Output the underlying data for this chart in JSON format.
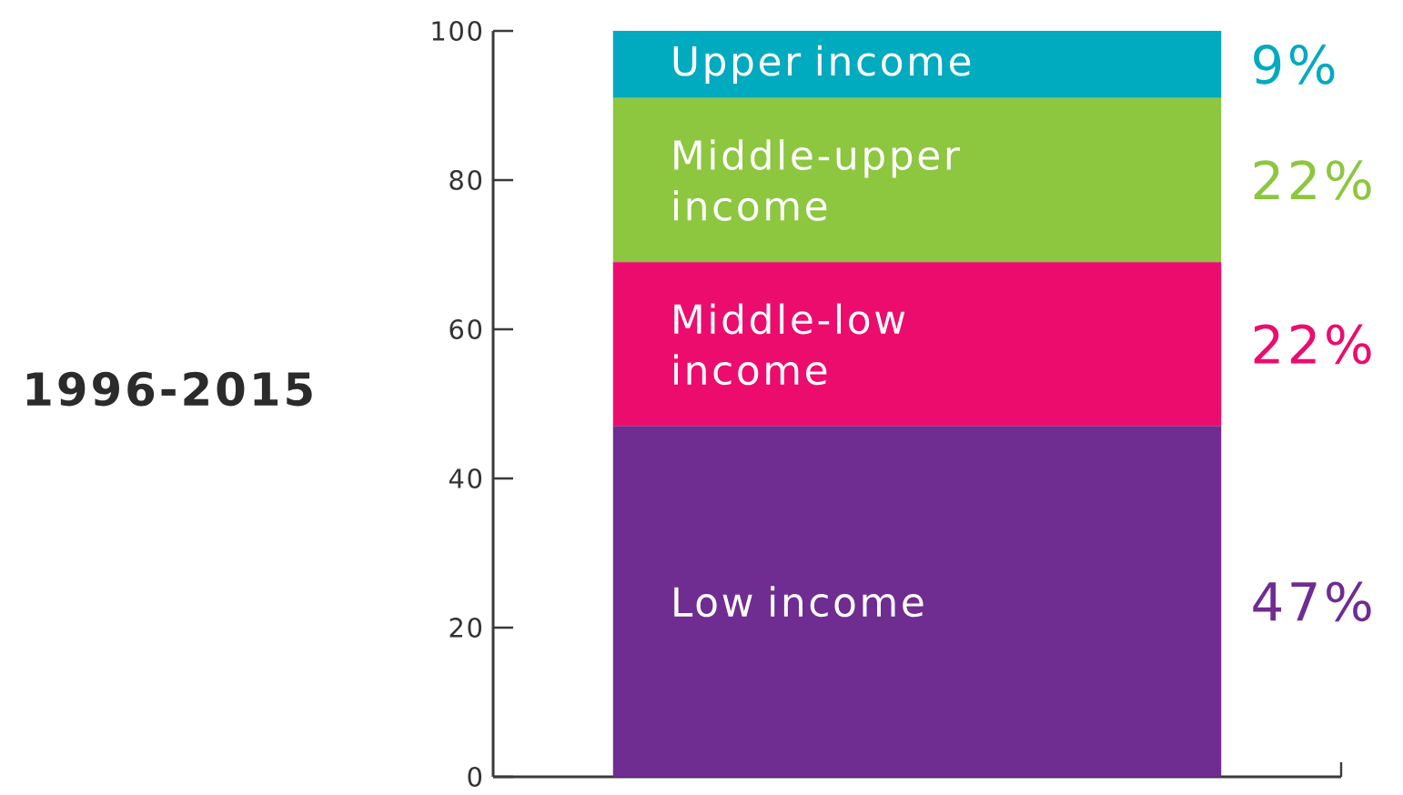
{
  "chart_data": {
    "type": "bar",
    "stacked": true,
    "title": "1996-2015",
    "categories": [
      null
    ],
    "series": [
      {
        "name": "Low income",
        "color": "#6f2c91",
        "values": [
          47
        ]
      },
      {
        "name": "Middle-low income",
        "color": "#ec0c6e",
        "values": [
          22
        ]
      },
      {
        "name": "Middle-upper income",
        "color": "#8dc63f",
        "values": [
          22
        ]
      },
      {
        "name": "Upper income",
        "color": "#00aabf",
        "values": [
          9
        ]
      }
    ],
    "ylim": [
      0,
      100
    ],
    "yticks": [
      0,
      20,
      40,
      60,
      80,
      100
    ],
    "annotations": [
      "9%",
      "22%",
      "22%",
      "47%"
    ]
  }
}
